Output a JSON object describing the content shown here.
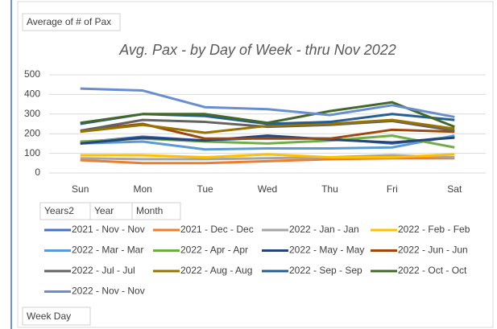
{
  "chart_data": {
    "type": "line",
    "value_field": "Average of # of Pax",
    "legend_fields": [
      "Years2",
      "Year",
      "Month"
    ],
    "axis_field": "Week Day",
    "title": "Avg. Pax - by Day of Week - thru Nov 2022",
    "categories": [
      "Sun",
      "Mon",
      "Tue",
      "Wed",
      "Thu",
      "Fri",
      "Sat"
    ],
    "ylim": [
      0,
      500
    ],
    "yticks": [
      0,
      100,
      200,
      300,
      400,
      500
    ],
    "grid": true,
    "series": [
      {
        "name": "2021 - Nov - Nov",
        "color": "#4472c4",
        "values": [
          155,
          185,
          165,
          180,
          175,
          150,
          185
        ]
      },
      {
        "name": "2021 - Dec - Dec",
        "color": "#ed7d31",
        "values": [
          65,
          50,
          50,
          60,
          70,
          75,
          75
        ]
      },
      {
        "name": "2022 - Jan - Jan",
        "color": "#a5a5a5",
        "values": [
          75,
          70,
          70,
          75,
          80,
          90,
          80
        ]
      },
      {
        "name": "2022 - Feb - Feb",
        "color": "#ffc000",
        "values": [
          90,
          90,
          80,
          95,
          80,
          80,
          95
        ]
      },
      {
        "name": "2022 - Mar - Mar",
        "color": "#5b9bd5",
        "values": [
          150,
          160,
          120,
          125,
          125,
          130,
          190
        ]
      },
      {
        "name": "2022 - Apr - Apr",
        "color": "#70ad47",
        "values": [
          160,
          175,
          160,
          150,
          165,
          190,
          130
        ]
      },
      {
        "name": "2022 - May - May",
        "color": "#264478",
        "values": [
          150,
          180,
          165,
          190,
          170,
          155,
          180
        ]
      },
      {
        "name": "2022 - Jun - Jun",
        "color": "#9e480e",
        "values": [
          215,
          250,
          175,
          175,
          175,
          220,
          210
        ]
      },
      {
        "name": "2022 - Jul - Jul",
        "color": "#636363",
        "values": [
          215,
          270,
          260,
          235,
          245,
          265,
          215
        ]
      },
      {
        "name": "2022 - Aug - Aug",
        "color": "#997300",
        "values": [
          210,
          245,
          205,
          240,
          250,
          270,
          225
        ]
      },
      {
        "name": "2022 - Sep - Sep",
        "color": "#255e91",
        "values": [
          250,
          300,
          290,
          250,
          260,
          300,
          270
        ]
      },
      {
        "name": "2022 - Oct - Oct",
        "color": "#43682b",
        "values": [
          255,
          300,
          300,
          255,
          315,
          360,
          235
        ]
      },
      {
        "name": "2022 - Nov - Nov",
        "color": "#698ed0",
        "values": [
          430,
          420,
          335,
          325,
          295,
          345,
          285
        ]
      }
    ]
  }
}
